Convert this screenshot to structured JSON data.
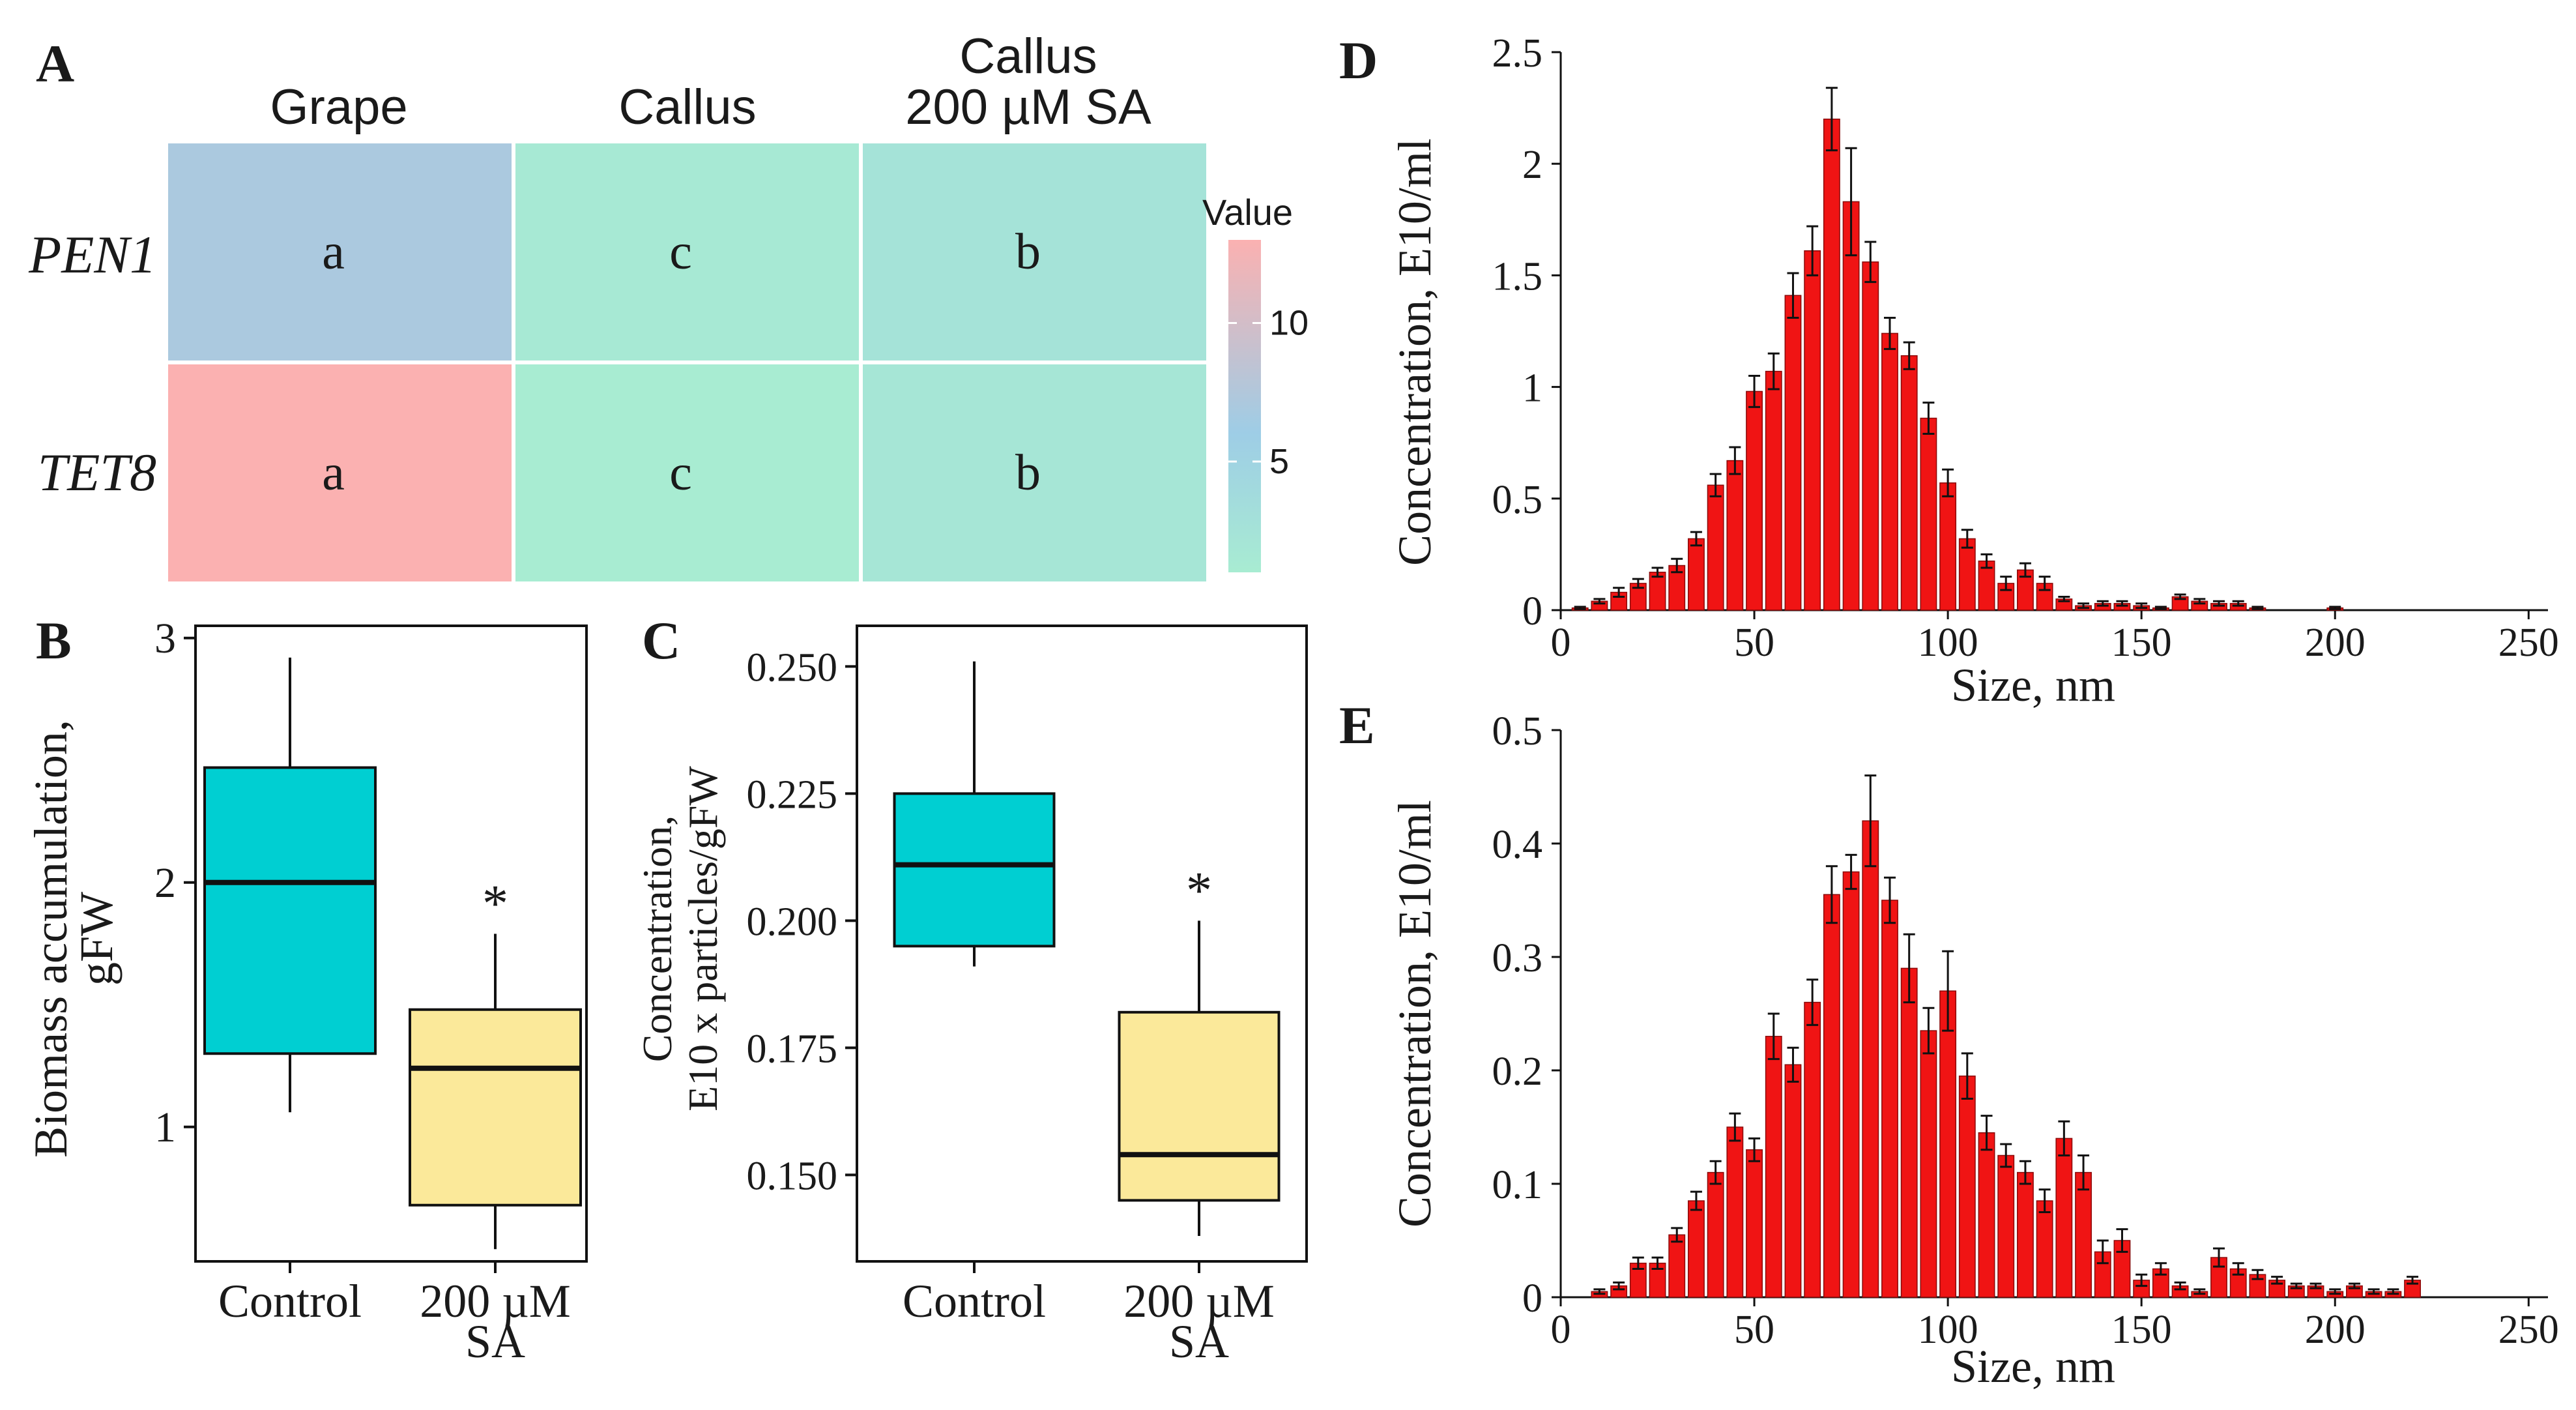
{
  "colors": {
    "heat_low": "#a8ecd2",
    "heat_mid": "#9ecde6",
    "heat_high": "#fbb1b1",
    "box_control": "#00cfd2",
    "box_sa": "#fbe99a",
    "bar": "#f01414"
  },
  "chart_data": [
    {
      "panel": "A",
      "type": "heatmap",
      "columns": [
        "Grape",
        "Callus",
        "Callus\n200 µM SA"
      ],
      "rows": [
        "PEN1",
        "TET8"
      ],
      "values": [
        [
          7,
          1.5,
          2.5
        ],
        [
          13,
          1,
          2
        ]
      ],
      "cell_labels": [
        [
          "a",
          "c",
          "b"
        ],
        [
          "a",
          "c",
          "b"
        ]
      ],
      "legend_title": "Value",
      "legend_ticks": [
        "10",
        "5"
      ],
      "legend_tick_values": [
        10,
        5
      ],
      "legend_range": [
        1,
        13
      ]
    },
    {
      "panel": "B",
      "type": "box",
      "categories": [
        "Control",
        "200 µM\nSA"
      ],
      "ylabel": "Biomass accumulation,\ngFW",
      "ylim": [
        0.45,
        3.05
      ],
      "yticks": [
        "1",
        "2",
        "3"
      ],
      "ytick_values": [
        1,
        2,
        3
      ],
      "boxes": [
        {
          "min": 1.06,
          "q1": 1.3,
          "median": 2.0,
          "q3": 2.47,
          "max": 2.92
        },
        {
          "min": 0.5,
          "q1": 0.68,
          "median": 1.24,
          "q3": 1.48,
          "max": 1.79
        }
      ],
      "significance": [
        "",
        "*"
      ]
    },
    {
      "panel": "C",
      "type": "box",
      "categories": [
        "Control",
        "200 µM\nSA"
      ],
      "ylabel": "Concentration,\nE10 x particles/gFW",
      "ylim": [
        0.133,
        0.258
      ],
      "yticks": [
        "0.250",
        "0.225",
        "0.200",
        "0.175",
        "0.150"
      ],
      "ytick_values": [
        0.25,
        0.225,
        0.2,
        0.175,
        0.15
      ],
      "boxes": [
        {
          "min": 0.191,
          "q1": 0.195,
          "median": 0.211,
          "q3": 0.225,
          "max": 0.251
        },
        {
          "min": 0.138,
          "q1": 0.145,
          "median": 0.154,
          "q3": 0.182,
          "max": 0.2
        }
      ],
      "significance": [
        "",
        "*"
      ]
    },
    {
      "panel": "D",
      "type": "bar",
      "xlabel": "Size, nm",
      "ylabel": "Concentration, E10/ml",
      "xlim": [
        0,
        255
      ],
      "ylim": [
        0,
        2.5
      ],
      "xticks": [
        "0",
        "50",
        "100",
        "150",
        "200",
        "250"
      ],
      "xtick_values": [
        0,
        50,
        100,
        150,
        200,
        250
      ],
      "yticks": [
        "0",
        "0.5",
        "1",
        "1.5",
        "2",
        "2.5"
      ],
      "ytick_values": [
        0,
        0.5,
        1,
        1.5,
        2,
        2.5
      ],
      "x": [
        5,
        10,
        15,
        20,
        25,
        30,
        35,
        40,
        45,
        50,
        55,
        60,
        65,
        70,
        75,
        80,
        85,
        90,
        95,
        100,
        105,
        110,
        115,
        120,
        125,
        130,
        135,
        140,
        145,
        150,
        155,
        160,
        165,
        170,
        175,
        180,
        200
      ],
      "values": [
        0.01,
        0.04,
        0.08,
        0.12,
        0.17,
        0.2,
        0.32,
        0.56,
        0.67,
        0.98,
        1.07,
        1.41,
        1.61,
        2.2,
        1.83,
        1.56,
        1.24,
        1.14,
        0.86,
        0.57,
        0.32,
        0.22,
        0.12,
        0.18,
        0.12,
        0.05,
        0.02,
        0.03,
        0.03,
        0.02,
        0.01,
        0.06,
        0.04,
        0.03,
        0.03,
        0.01,
        0.01
      ],
      "errors": [
        0.005,
        0.01,
        0.02,
        0.02,
        0.02,
        0.03,
        0.03,
        0.05,
        0.06,
        0.07,
        0.08,
        0.1,
        0.11,
        0.14,
        0.24,
        0.09,
        0.07,
        0.06,
        0.07,
        0.06,
        0.04,
        0.03,
        0.03,
        0.03,
        0.03,
        0.01,
        0.01,
        0.01,
        0.01,
        0.01,
        0.005,
        0.01,
        0.01,
        0.01,
        0.01,
        0.005,
        0.005
      ]
    },
    {
      "panel": "E",
      "type": "bar",
      "xlabel": "Size, nm",
      "ylabel": "Concentration, E10/ml",
      "xlim": [
        0,
        255
      ],
      "ylim": [
        0,
        0.5
      ],
      "xticks": [
        "0",
        "50",
        "100",
        "150",
        "200",
        "250"
      ],
      "xtick_values": [
        0,
        50,
        100,
        150,
        200,
        250
      ],
      "yticks": [
        "0",
        "0.1",
        "0.2",
        "0.3",
        "0.4",
        "0.5"
      ],
      "ytick_values": [
        0,
        0.1,
        0.2,
        0.3,
        0.4,
        0.5
      ],
      "x": [
        10,
        15,
        20,
        25,
        30,
        35,
        40,
        45,
        50,
        55,
        60,
        65,
        70,
        75,
        80,
        85,
        90,
        95,
        100,
        105,
        110,
        115,
        120,
        125,
        130,
        135,
        140,
        145,
        150,
        155,
        160,
        165,
        170,
        175,
        180,
        185,
        190,
        195,
        200,
        205,
        210,
        215,
        220
      ],
      "values": [
        0.005,
        0.01,
        0.03,
        0.03,
        0.055,
        0.085,
        0.11,
        0.15,
        0.13,
        0.23,
        0.205,
        0.26,
        0.355,
        0.375,
        0.42,
        0.35,
        0.29,
        0.235,
        0.27,
        0.195,
        0.145,
        0.125,
        0.11,
        0.085,
        0.14,
        0.11,
        0.04,
        0.05,
        0.015,
        0.025,
        0.01,
        0.005,
        0.035,
        0.025,
        0.02,
        0.015,
        0.01,
        0.01,
        0.005,
        0.01,
        0.005,
        0.005,
        0.015
      ],
      "errors": [
        0.002,
        0.003,
        0.005,
        0.005,
        0.006,
        0.008,
        0.01,
        0.012,
        0.01,
        0.02,
        0.015,
        0.02,
        0.025,
        0.015,
        0.04,
        0.02,
        0.03,
        0.02,
        0.035,
        0.02,
        0.015,
        0.01,
        0.01,
        0.01,
        0.015,
        0.015,
        0.01,
        0.01,
        0.005,
        0.005,
        0.003,
        0.002,
        0.008,
        0.005,
        0.004,
        0.003,
        0.002,
        0.002,
        0.002,
        0.002,
        0.002,
        0.002,
        0.003
      ]
    }
  ],
  "panel_labels": [
    "A",
    "B",
    "C",
    "D",
    "E"
  ]
}
